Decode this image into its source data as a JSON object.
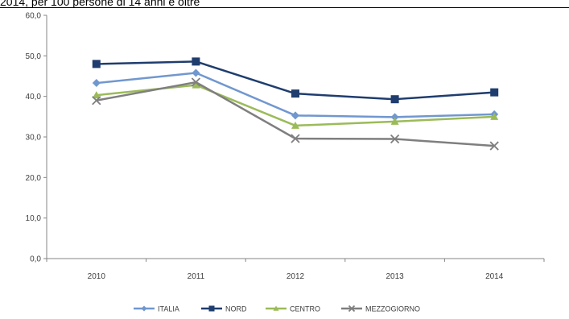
{
  "header": {
    "text": "2014, per 100 persone di 14 anni e oltre"
  },
  "chart_data": {
    "type": "line",
    "categories": [
      "2010",
      "2011",
      "2012",
      "2013",
      "2014"
    ],
    "ylim": [
      0,
      60
    ],
    "yticks": [
      "0,0",
      "10,0",
      "20,0",
      "30,0",
      "40,0",
      "50,0",
      "60,0"
    ],
    "grid": "none",
    "legend_position": "bottom",
    "series": [
      {
        "name": "ITALIA",
        "values": [
          43.3,
          45.8,
          35.3,
          34.9,
          35.6
        ],
        "color": "#7197cf",
        "marker": "diamond"
      },
      {
        "name": "NORD",
        "values": [
          48.0,
          48.6,
          40.7,
          39.3,
          41.0
        ],
        "color": "#1f3d6e",
        "marker": "square"
      },
      {
        "name": "CENTRO",
        "values": [
          40.3,
          42.8,
          32.8,
          33.8,
          35.0
        ],
        "color": "#9bbb59",
        "marker": "triangle"
      },
      {
        "name": "MEZZOGIORNO",
        "values": [
          39.0,
          43.5,
          29.6,
          29.5,
          27.8
        ],
        "color": "#7f7f7f",
        "marker": "x"
      }
    ]
  }
}
